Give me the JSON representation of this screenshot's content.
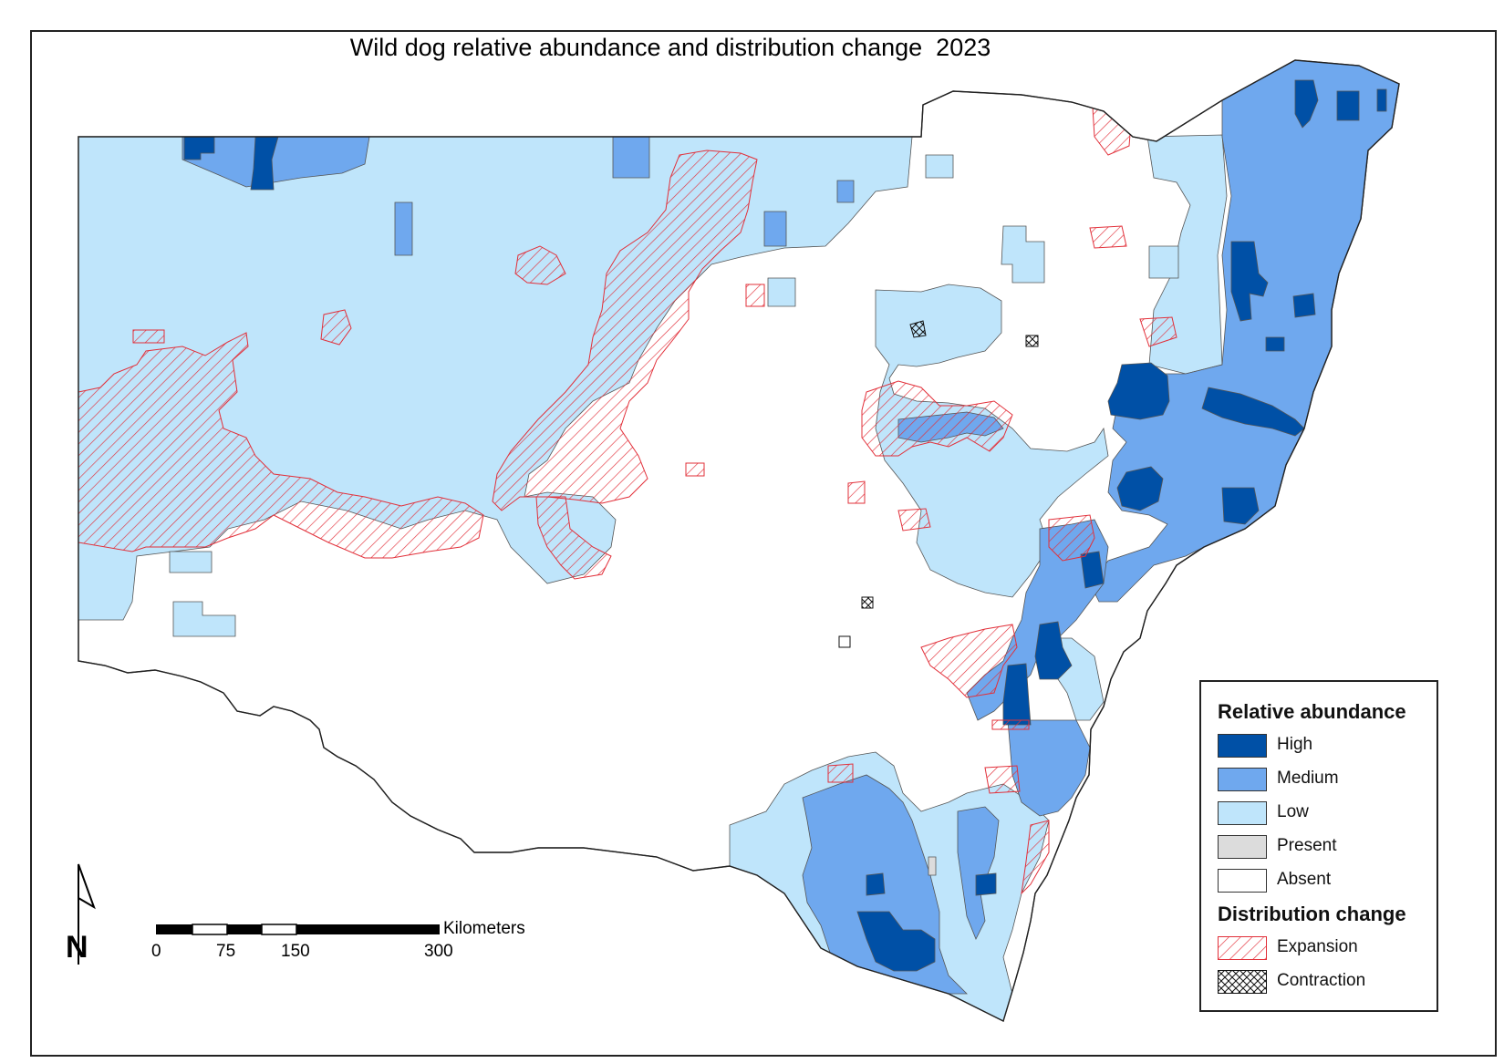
{
  "title": "Wild dog relative abundance and distribution change  2023",
  "colors": {
    "high": "#0050a6",
    "medium": "#6fa8ee",
    "low": "#bfe5fb",
    "present": "#dcdcdc",
    "absent": "#ffffff",
    "expansion_stroke": "#e2303a",
    "border": "#222222"
  },
  "legend": {
    "abundance_heading": "Relative abundance",
    "abundance_items": [
      {
        "label": "High"
      },
      {
        "label": "Medium"
      },
      {
        "label": "Low"
      },
      {
        "label": "Present"
      },
      {
        "label": "Absent"
      }
    ],
    "change_heading": "Distribution change",
    "change_items": [
      {
        "label": "Expansion"
      },
      {
        "label": "Contraction"
      }
    ]
  },
  "scale_bar": {
    "unit": "Kilometers",
    "ticks": [
      "0",
      "75",
      "150",
      "300"
    ]
  },
  "north_arrow": {
    "label": "N",
    "icon": "north-arrow-icon"
  }
}
